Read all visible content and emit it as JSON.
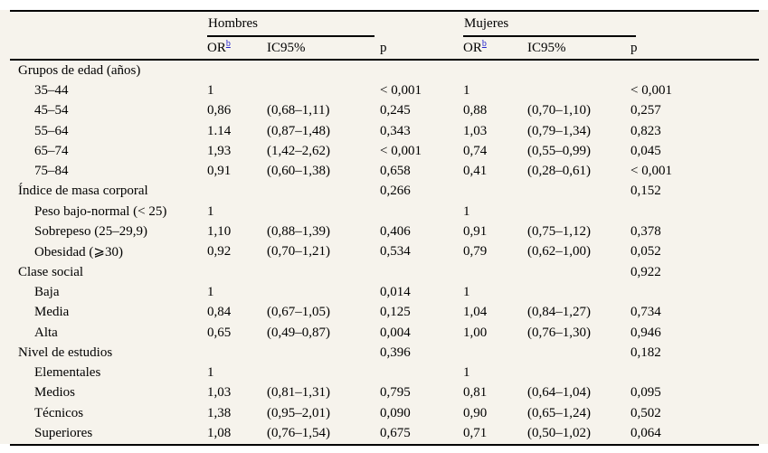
{
  "colors": {
    "table_background": "#f6f3ec",
    "page_background": "#ffffff",
    "rule": "#000000",
    "text": "#000000",
    "footnote_link": "#2424cc"
  },
  "table": {
    "groups": [
      "Hombres",
      "Mujeres"
    ],
    "col_headers": {
      "or": "OR",
      "or_sup": "b",
      "ic": "IC95%",
      "p": "p"
    },
    "rows": [
      {
        "label": "Grupos de edad (años)",
        "h_or": "",
        "h_ic": "",
        "h_p": "",
        "m_or": "",
        "m_ic": "",
        "m_p": ""
      },
      {
        "label": "35–44",
        "h_or": "1",
        "h_ic": "",
        "h_p": "< 0,001",
        "m_or": "1",
        "m_ic": "",
        "m_p": "< 0,001"
      },
      {
        "label": "45–54",
        "h_or": "0,86",
        "h_ic": "(0,68–1,11)",
        "h_p": "0,245",
        "m_or": "0,88",
        "m_ic": "(0,70–1,10)",
        "m_p": "0,257"
      },
      {
        "label": "55–64",
        "h_or": "1.14",
        "h_ic": "(0,87–1,48)",
        "h_p": "0,343",
        "m_or": "1,03",
        "m_ic": "(0,79–1,34)",
        "m_p": "0,823"
      },
      {
        "label": "65–74",
        "h_or": "1,93",
        "h_ic": "(1,42–2,62)",
        "h_p": "< 0,001",
        "m_or": "0,74",
        "m_ic": "(0,55–0,99)",
        "m_p": "0,045"
      },
      {
        "label": "75–84",
        "h_or": "0,91",
        "h_ic": "(0,60–1,38)",
        "h_p": "0,658",
        "m_or": "0,41",
        "m_ic": "(0,28–0,61)",
        "m_p": "< 0,001"
      },
      {
        "label": "Índice de masa corporal",
        "h_or": "",
        "h_ic": "",
        "h_p": "0,266",
        "m_or": "",
        "m_ic": "",
        "m_p": "0,152"
      },
      {
        "label": "Peso bajo-normal (< 25)",
        "h_or": "1",
        "h_ic": "",
        "h_p": "",
        "m_or": "1",
        "m_ic": "",
        "m_p": ""
      },
      {
        "label": "Sobrepeso (25–29,9)",
        "h_or": "1,10",
        "h_ic": "(0,88–1,39)",
        "h_p": "0,406",
        "m_or": "0,91",
        "m_ic": "(0,75–1,12)",
        "m_p": "0,378"
      },
      {
        "label": "Obesidad (⩾30)",
        "h_or": "0,92",
        "h_ic": "(0,70–1,21)",
        "h_p": "0,534",
        "m_or": "0,79",
        "m_ic": "(0,62–1,00)",
        "m_p": "0,052"
      },
      {
        "label": "Clase social",
        "h_or": "",
        "h_ic": "",
        "h_p": "",
        "m_or": "",
        "m_ic": "",
        "m_p": "0,922"
      },
      {
        "label": "Baja",
        "h_or": "1",
        "h_ic": "",
        "h_p": "0,014",
        "m_or": "1",
        "m_ic": "",
        "m_p": ""
      },
      {
        "label": "Media",
        "h_or": "0,84",
        "h_ic": "(0,67–1,05)",
        "h_p": "0,125",
        "m_or": "1,04",
        "m_ic": "(0,84–1,27)",
        "m_p": "0,734"
      },
      {
        "label": "Alta",
        "h_or": "0,65",
        "h_ic": "(0,49–0,87)",
        "h_p": "0,004",
        "m_or": "1,00",
        "m_ic": "(0,76–1,30)",
        "m_p": "0,946"
      },
      {
        "label": "Nivel de estudios",
        "h_or": "",
        "h_ic": "",
        "h_p": "0,396",
        "m_or": "",
        "m_ic": "",
        "m_p": "0,182"
      },
      {
        "label": "Elementales",
        "h_or": "1",
        "h_ic": "",
        "h_p": "",
        "m_or": "1",
        "m_ic": "",
        "m_p": ""
      },
      {
        "label": "Medios",
        "h_or": "1,03",
        "h_ic": "(0,81–1,31)",
        "h_p": "0,795",
        "m_or": "0,81",
        "m_ic": "(0,64–1,04)",
        "m_p": "0,095"
      },
      {
        "label": "Técnicos",
        "h_or": "1,38",
        "h_ic": "(0,95–2,01)",
        "h_p": "0,090",
        "m_or": "0,90",
        "m_ic": "(0,65–1,24)",
        "m_p": "0,502"
      },
      {
        "label": "Superiores",
        "h_or": "1,08",
        "h_ic": "(0,76–1,54)",
        "h_p": "0,675",
        "m_or": "0,71",
        "m_ic": "(0,50–1,02)",
        "m_p": "0,064"
      }
    ]
  }
}
